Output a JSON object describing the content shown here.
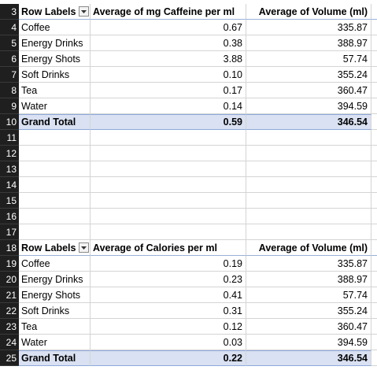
{
  "pivot1": {
    "header": {
      "row_num": "3",
      "row_labels": "Row Labels",
      "col2": "Average of mg Caffeine per ml",
      "col3": "Average of Volume (ml)"
    },
    "rows": [
      {
        "num": "4",
        "label": "Coffee",
        "v1": "0.67",
        "v2": "335.87"
      },
      {
        "num": "5",
        "label": "Energy Drinks",
        "v1": "0.38",
        "v2": "388.97"
      },
      {
        "num": "6",
        "label": "Energy Shots",
        "v1": "3.88",
        "v2": "57.74"
      },
      {
        "num": "7",
        "label": "Soft Drinks",
        "v1": "0.10",
        "v2": "355.24"
      },
      {
        "num": "8",
        "label": "Tea",
        "v1": "0.17",
        "v2": "360.47"
      },
      {
        "num": "9",
        "label": "Water",
        "v1": "0.14",
        "v2": "394.59"
      }
    ],
    "total": {
      "num": "10",
      "label": "Grand Total",
      "v1": "0.59",
      "v2": "346.54"
    }
  },
  "empty_rows": [
    "11",
    "12",
    "13",
    "14",
    "15",
    "16",
    "17"
  ],
  "pivot2": {
    "header": {
      "row_num": "18",
      "row_labels": "Row Labels",
      "col2": "Average of Calories per ml",
      "col3": "Average of Volume (ml)"
    },
    "rows": [
      {
        "num": "19",
        "label": "Coffee",
        "v1": "0.19",
        "v2": "335.87"
      },
      {
        "num": "20",
        "label": "Energy Drinks",
        "v1": "0.23",
        "v2": "388.97"
      },
      {
        "num": "21",
        "label": "Energy Shots",
        "v1": "0.41",
        "v2": "57.74"
      },
      {
        "num": "22",
        "label": "Soft Drinks",
        "v1": "0.31",
        "v2": "355.24"
      },
      {
        "num": "23",
        "label": "Tea",
        "v1": "0.12",
        "v2": "360.47"
      },
      {
        "num": "24",
        "label": "Water",
        "v1": "0.03",
        "v2": "394.59"
      }
    ],
    "total": {
      "num": "25",
      "label": "Grand Total",
      "v1": "0.22",
      "v2": "346.54"
    }
  },
  "colors": {
    "row_header_bg": "#1f1f1f",
    "total_bg": "#d9e1f2",
    "gridline": "#d4d4d4"
  },
  "icons": {
    "filter": "dropdown-arrow-icon"
  }
}
